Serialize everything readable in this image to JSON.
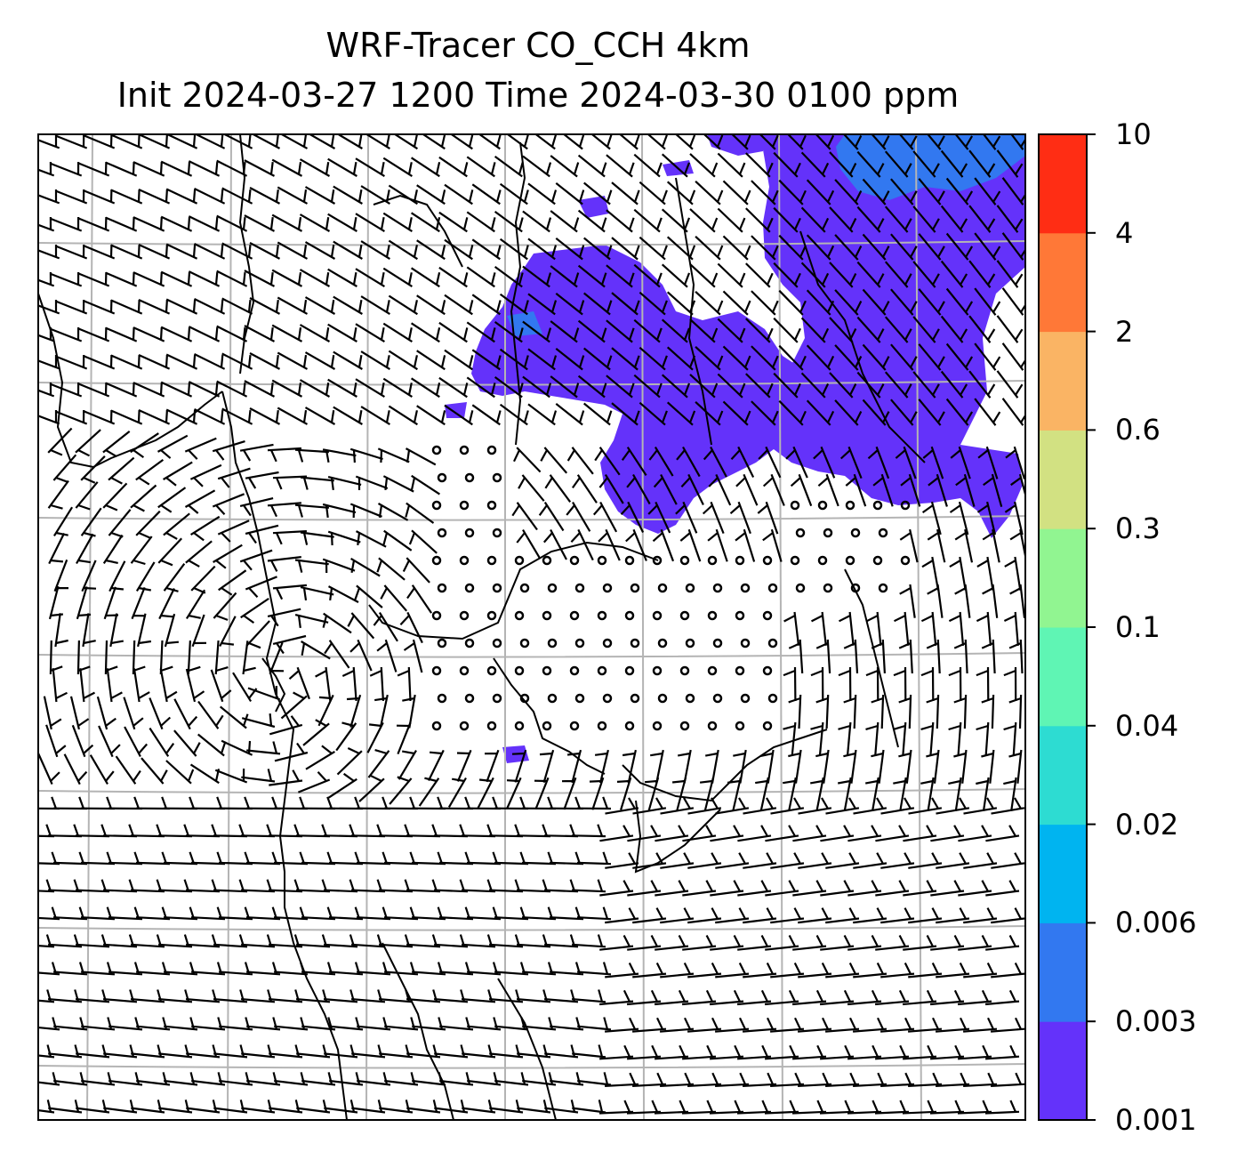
{
  "title": {
    "line1": "WRF-Tracer CO_CCH 4km",
    "line2": "Init 2024-03-27 1200 Time 2024-03-30 0100 ppm"
  },
  "colorbar": {
    "levels": [
      "0.001",
      "0.003",
      "0.006",
      "0.02",
      "0.04",
      "0.1",
      "0.3",
      "0.6",
      "2",
      "4",
      "10"
    ],
    "colors": [
      "#6432fa",
      "#3278f0",
      "#00b4f0",
      "#2ddcd2",
      "#5ff5b4",
      "#91f591",
      "#d2e182",
      "#fab464",
      "#ff7837",
      "#ff2d14"
    ]
  },
  "map": {
    "tracer_color": "#6432fa",
    "tracer_dense_color": "#3278f0",
    "gridline_color": "#b4b4b4",
    "wind_symbol": "wind barbs (calm: circles)"
  }
}
